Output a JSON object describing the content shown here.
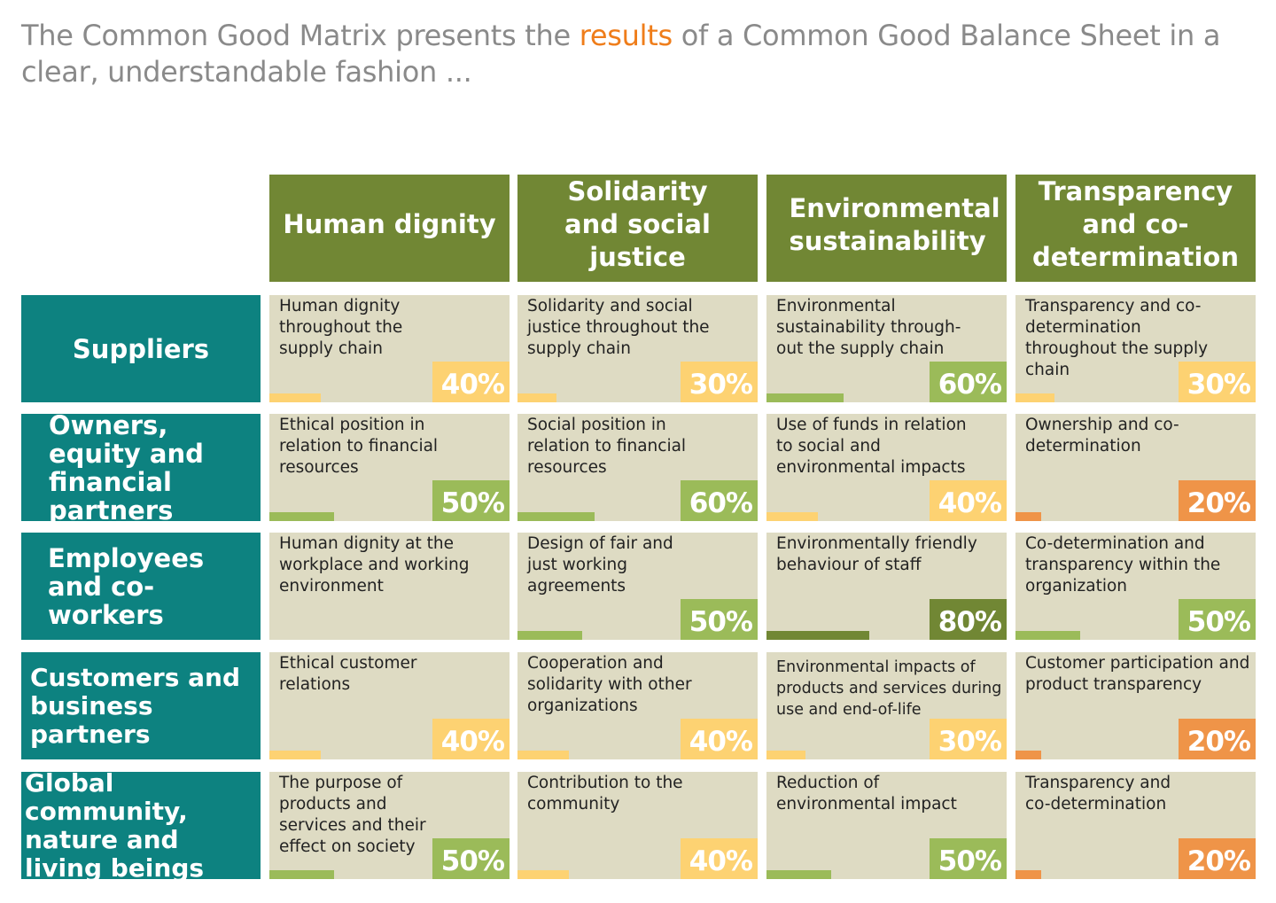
{
  "intro": {
    "before": "The Common Good Matrix presents the ",
    "highlight": "results",
    "after": " of a Common Good Balance Sheet in a clear, understandable fashion ..."
  },
  "colors": {
    "column_header": "#718734",
    "row_header": "#0d8280",
    "cell_background": "#dedbc3",
    "highlight_text": "#ef7d1a",
    "score_low": "#ef9448",
    "score_mid": "#fdd272",
    "score_good": "#9bbb59",
    "score_high": "#718734"
  },
  "columns": [
    "Human dignity",
    "Solidarity and social justice",
    "Environmental sustainability",
    "Transparency and co-determination"
  ],
  "rows": [
    {
      "label": "Suppliers",
      "cells": [
        {
          "text": "Human dignity throughout the supply chain",
          "score": "40%",
          "value": 0.4
        },
        {
          "text": "Solidarity and social justice throughout the supply chain",
          "score": "30%",
          "value": 0.3
        },
        {
          "text": "Environmental sustainability through-out the supply chain",
          "score": "60%",
          "value": 0.6
        },
        {
          "text": "Transparency and co-determination throughout the supply chain",
          "score": "30%",
          "value": 0.3
        }
      ]
    },
    {
      "label": "Owners, equity and financial partners",
      "cells": [
        {
          "text": "Ethical position in relation to financial resources",
          "score": "50%",
          "value": 0.5
        },
        {
          "text": "Social position in relation to financial resources",
          "score": "60%",
          "value": 0.6
        },
        {
          "text": "Use of funds in relation to social and environmental impacts",
          "score": "40%",
          "value": 0.4
        },
        {
          "text": "Ownership and co-determination",
          "score": "20%",
          "value": 0.2
        }
      ]
    },
    {
      "label": "Employees and co-workers",
      "cells": [
        {
          "text": "Human dignity at the workplace and working environment",
          "score": "",
          "value": 0
        },
        {
          "text": "Design of fair and just working agreements",
          "score": "50%",
          "value": 0.5
        },
        {
          "text": "Environmentally friendly behaviour of staff",
          "score": "80%",
          "value": 0.8
        },
        {
          "text": "Co-determination and transparency within the organization",
          "score": "50%",
          "value": 0.5
        }
      ]
    },
    {
      "label": "Customers and business partners",
      "cells": [
        {
          "text": "Ethical customer relations",
          "score": "40%",
          "value": 0.4
        },
        {
          "text": "Cooperation and solidarity with other organizations",
          "score": "40%",
          "value": 0.4
        },
        {
          "text": "Environmental impacts of products and services during use and end-of-life",
          "score": "30%",
          "value": 0.3
        },
        {
          "text": "Customer participation and product transparency",
          "score": "20%",
          "value": 0.2
        }
      ]
    },
    {
      "label": "Global community, nature and living beings",
      "cells": [
        {
          "text": "The purpose of products and services and their effect on society",
          "score": "50%",
          "value": 0.5
        },
        {
          "text": "Contribution to the community",
          "score": "40%",
          "value": 0.4
        },
        {
          "text": "Reduction of environmental impact",
          "score": "50%",
          "value": 0.5
        },
        {
          "text": "Transparency and co-determination",
          "score": "20%",
          "value": 0.2
        }
      ]
    }
  ]
}
